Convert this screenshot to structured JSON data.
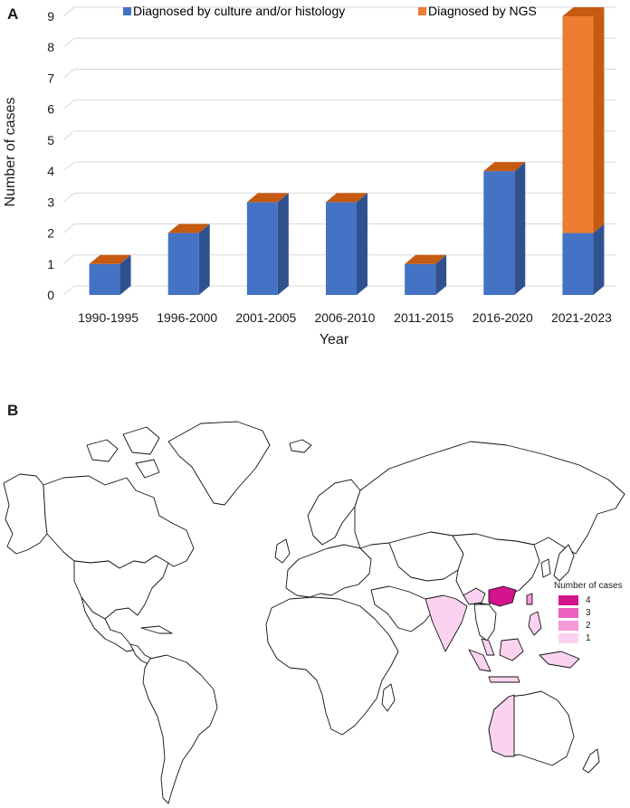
{
  "panels": {
    "a": "A",
    "b": "B"
  },
  "chart_data": {
    "type": "bar",
    "stacked": true,
    "categories": [
      "1990-1995",
      "1996-2000",
      "2001-2005",
      "2006-2010",
      "2011-2015",
      "2016-2020",
      "2021-2023"
    ],
    "series": [
      {
        "name": "Diagnosed by culture and/or histology",
        "values": [
          1,
          2,
          3,
          3,
          1,
          4,
          2
        ],
        "color": "#4472c4",
        "side": "#2f528f"
      },
      {
        "name": "Diagnosed by NGS",
        "values": [
          0,
          0,
          0,
          0,
          0,
          0,
          7
        ],
        "color": "#ed7d31",
        "side": "#c55a11"
      }
    ],
    "top_cap_color": "#c55a11",
    "title": "",
    "xlabel": "Year",
    "ylabel": "Number of cases",
    "ylim": [
      0,
      9
    ],
    "yticks": [
      0,
      1,
      2,
      3,
      4,
      5,
      6,
      7,
      8,
      9
    ],
    "grid": true,
    "legend": "top"
  },
  "map": {
    "legend_title": "Number of cases",
    "legend": [
      {
        "label": "4",
        "color": "#d4148c"
      },
      {
        "label": "3",
        "color": "#ef5fbe"
      },
      {
        "label": "2",
        "color": "#f39ad6"
      },
      {
        "label": "1",
        "color": "#fbd3f0"
      }
    ]
  }
}
